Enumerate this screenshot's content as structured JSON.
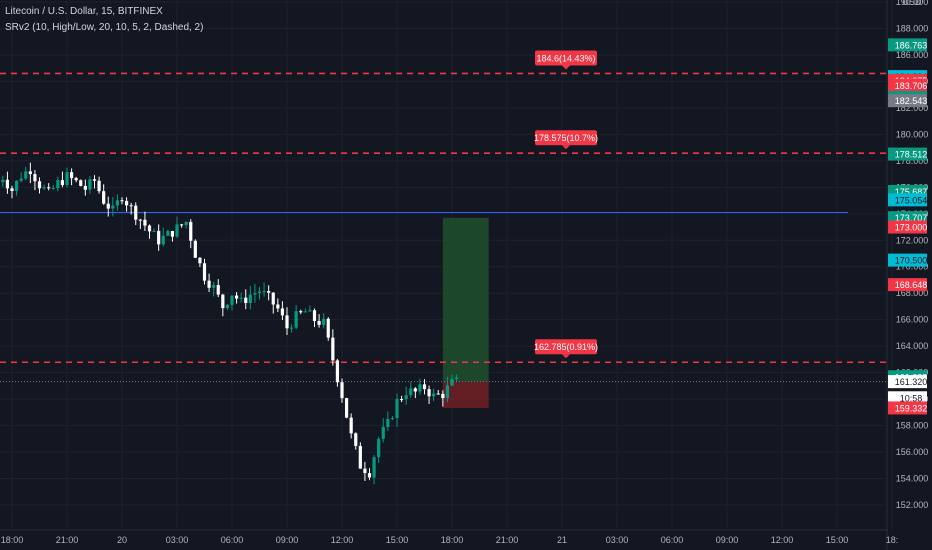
{
  "header": {
    "symbol_line": "Litecoin / U.S. Dollar, 15, BITFINEX",
    "indicator_line": "SRv2 (10, High/Low, 20, 10, 5, 2, Dashed, 2)"
  },
  "chart_data": {
    "type": "candlestick",
    "currency": "USD",
    "ylim": [
      151,
      190
    ],
    "y_ticks": [
      152,
      154,
      156,
      158,
      160,
      162,
      164,
      166,
      168,
      170,
      172,
      174,
      176,
      178,
      180,
      182,
      184,
      186,
      188,
      190
    ],
    "y_tick_labels": [
      "152.000",
      "154.000",
      "156.000",
      "158.000",
      "160.000",
      "162.000",
      "164.000",
      "166.000",
      "168.000",
      "170.000",
      "172.000",
      "174.000",
      "176.000",
      "178.000",
      "180.000",
      "182.000",
      "184.000",
      "186.000",
      "188.000",
      "190.000"
    ],
    "x_ticks": [
      {
        "label": "18:00",
        "hour": 0
      },
      {
        "label": "21:00",
        "hour": 3
      },
      {
        "label": "20",
        "hour": 6
      },
      {
        "label": "03:00",
        "hour": 9
      },
      {
        "label": "06:00",
        "hour": 12
      },
      {
        "label": "09:00",
        "hour": 15
      },
      {
        "label": "12:00",
        "hour": 18
      },
      {
        "label": "15:00",
        "hour": 21
      },
      {
        "label": "18:00",
        "hour": 24
      },
      {
        "label": "21:00",
        "hour": 27
      },
      {
        "label": "21",
        "hour": 30
      },
      {
        "label": "03:00",
        "hour": 33
      },
      {
        "label": "06:00",
        "hour": 36
      },
      {
        "label": "09:00",
        "hour": 39
      },
      {
        "label": "12:00",
        "hour": 42
      },
      {
        "label": "15:00",
        "hour": 45
      },
      {
        "label": "18:",
        "hour": 48
      }
    ],
    "candles_close_path": [
      [
        -1.0,
        176.0
      ],
      [
        -0.5,
        176.8
      ],
      [
        0.0,
        175.8
      ],
      [
        0.5,
        176.9
      ],
      [
        1.0,
        177.4
      ],
      [
        1.5,
        176.2
      ],
      [
        2.0,
        175.5
      ],
      [
        2.5,
        176.3
      ],
      [
        3.0,
        176.8
      ],
      [
        3.5,
        176.4
      ],
      [
        4.0,
        175.9
      ],
      [
        4.5,
        176.5
      ],
      [
        5.0,
        175.0
      ],
      [
        5.5,
        174.2
      ],
      [
        6.0,
        175.4
      ],
      [
        6.5,
        174.4
      ],
      [
        7.0,
        173.6
      ],
      [
        7.5,
        172.7
      ],
      [
        8.0,
        172.0
      ],
      [
        8.5,
        172.4
      ],
      [
        9.0,
        172.9
      ],
      [
        9.5,
        173.4
      ],
      [
        10.0,
        171.0
      ],
      [
        10.5,
        169.3
      ],
      [
        11.0,
        168.4
      ],
      [
        11.5,
        167.0
      ],
      [
        12.0,
        168.0
      ],
      [
        12.5,
        167.3
      ],
      [
        13.0,
        167.9
      ],
      [
        13.5,
        168.2
      ],
      [
        14.0,
        167.6
      ],
      [
        14.5,
        166.8
      ],
      [
        15.0,
        165.4
      ],
      [
        15.5,
        166.2
      ],
      [
        16.0,
        166.6
      ],
      [
        16.5,
        166.0
      ],
      [
        17.0,
        165.7
      ],
      [
        17.5,
        163.0
      ],
      [
        18.0,
        160.3
      ],
      [
        18.5,
        157.2
      ],
      [
        19.0,
        155.0
      ],
      [
        19.5,
        154.5
      ],
      [
        20.0,
        157.0
      ],
      [
        20.5,
        158.1
      ],
      [
        21.0,
        159.8
      ],
      [
        21.5,
        160.6
      ],
      [
        22.0,
        160.5
      ],
      [
        22.5,
        160.9
      ],
      [
        23.0,
        160.2
      ],
      [
        23.5,
        160.4
      ],
      [
        24.0,
        161.2
      ],
      [
        24.3,
        161.3
      ]
    ],
    "horizontal_lines": [
      {
        "price": 184.6,
        "style": "dashed",
        "color": "#f23645",
        "label": "184.6(14.43%)"
      },
      {
        "price": 178.575,
        "style": "dashed",
        "color": "#f23645",
        "label": "178.575(10.7%)"
      },
      {
        "price": 162.785,
        "style": "dashed",
        "color": "#f23645",
        "label": "162.785(0.91%)"
      },
      {
        "price": 174.1,
        "style": "solid",
        "color": "#2962ff",
        "label": ""
      },
      {
        "price": 161.32,
        "style": "dotted",
        "color": "#787b86",
        "label": ""
      }
    ],
    "position_tool": {
      "entry": 161.32,
      "target": 173.7,
      "stop": 159.33,
      "x_start_hour": 23.5,
      "x_end_hour": 26.0
    },
    "price_labels": [
      {
        "text": "186.763",
        "price": 186.763,
        "bg": "#089981",
        "fg": "#ffffff"
      },
      {
        "text": "184.364",
        "price": 184.364,
        "bg": "#00bcd4",
        "fg": "#131722"
      },
      {
        "text": "184.075",
        "price": 184.075,
        "bg": "#f23645",
        "fg": "#ffffff"
      },
      {
        "text": "183.706",
        "price": 183.706,
        "bg": "#f23645",
        "fg": "#ffffff"
      },
      {
        "text": "182.783",
        "price": 182.783,
        "bg": "#089981",
        "fg": "#ffffff"
      },
      {
        "text": "182.543",
        "price": 182.543,
        "bg": "#787b86",
        "fg": "#ffffff"
      },
      {
        "text": "178.512",
        "price": 178.512,
        "bg": "#089981",
        "fg": "#ffffff"
      },
      {
        "text": "175.687",
        "price": 175.687,
        "bg": "#089981",
        "fg": "#ffffff"
      },
      {
        "text": "175.054",
        "price": 175.054,
        "bg": "#00bcd4",
        "fg": "#131722"
      },
      {
        "text": "173.707",
        "price": 173.707,
        "bg": "#089981",
        "fg": "#ffffff"
      },
      {
        "text": "173.000",
        "price": 173.0,
        "bg": "#f23645",
        "fg": "#ffffff"
      },
      {
        "text": "170.500",
        "price": 170.5,
        "bg": "#00bcd4",
        "fg": "#131722"
      },
      {
        "text": "168.648",
        "price": 168.648,
        "bg": "#f23645",
        "fg": "#ffffff"
      },
      {
        "text": "161.688",
        "price": 161.688,
        "bg": "#089981",
        "fg": "#ffffff"
      },
      {
        "text": "161.320",
        "price": 161.32,
        "bg": "#ffffff",
        "fg": "#131722"
      },
      {
        "text": "10:58",
        "price": 160.1,
        "bg": "#ffffff",
        "fg": "#131722"
      },
      {
        "text": "159.332",
        "price": 159.332,
        "bg": "#f23645",
        "fg": "#ffffff"
      }
    ],
    "colors": {
      "background": "#131722",
      "grid": "#1e222d",
      "up": "#089981",
      "down": "#ffffff",
      "axis_text": "#b2b5be",
      "target_zone": "#1e4d2b",
      "stop_zone": "#6b1f24"
    }
  }
}
